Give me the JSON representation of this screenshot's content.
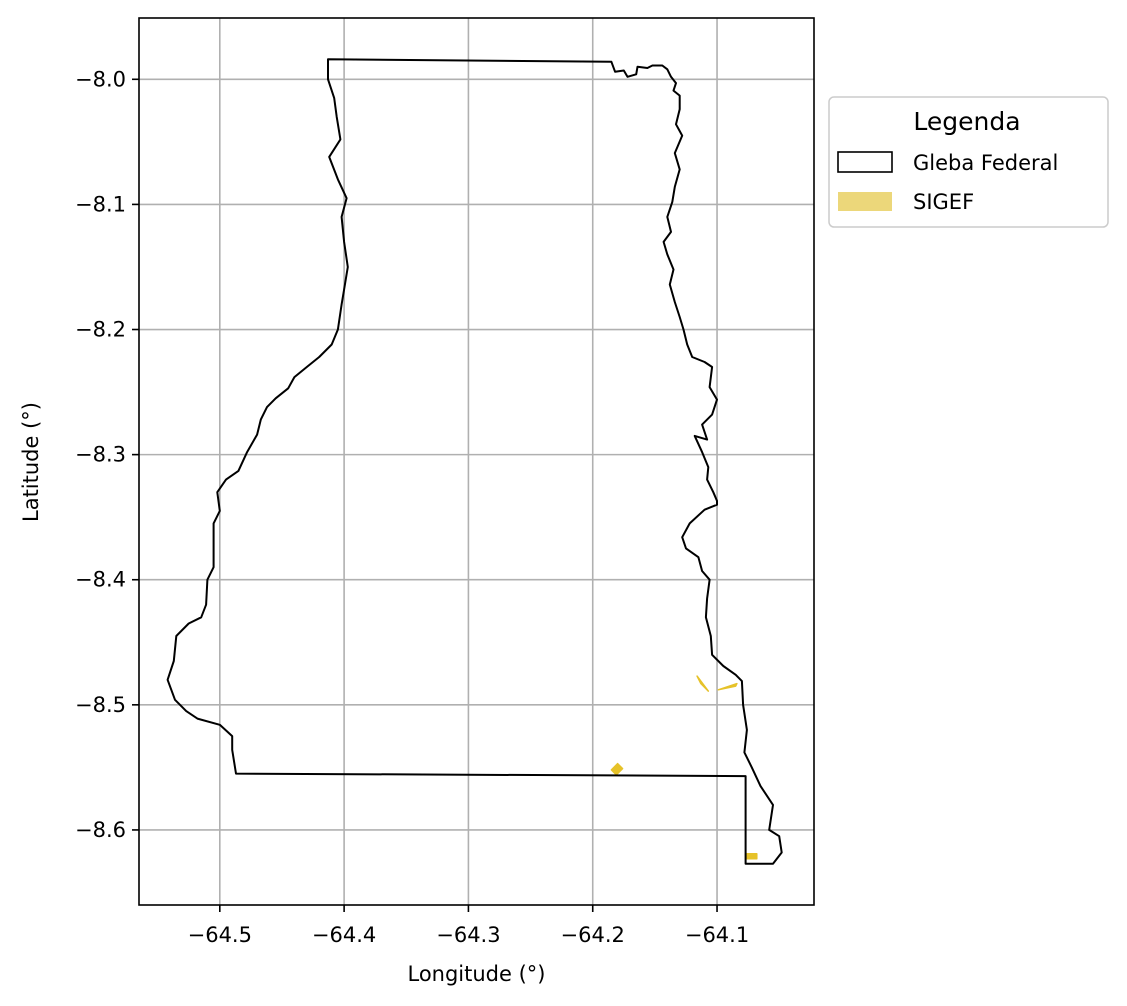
{
  "colors": {
    "boundary": "#000000",
    "sigef": "#e6c229",
    "sigef_legend": "#ecd77a",
    "grid": "#b0b0b0",
    "legend_border": "#cccccc"
  },
  "chart_data": {
    "type": "map",
    "xlabel": "Longitude (°)",
    "ylabel": "Latitude (°)",
    "xlim": [
      -64.565,
      -64.022
    ],
    "ylim": [
      -8.66,
      -7.951
    ],
    "xticks": [
      -64.5,
      -64.4,
      -64.3,
      -64.2,
      -64.1
    ],
    "xtick_labels": [
      "−64.5",
      "−64.4",
      "−64.3",
      "−64.2",
      "−64.1"
    ],
    "yticks": [
      -8.0,
      -8.1,
      -8.2,
      -8.3,
      -8.4,
      -8.5,
      -8.6
    ],
    "ytick_labels": [
      "−8.0",
      "−8.1",
      "−8.2",
      "−8.3",
      "−8.4",
      "−8.5",
      "−8.6"
    ],
    "grid": true,
    "legend": {
      "title": "Legenda",
      "placement": "outside-upper-right",
      "entries": [
        {
          "label": "Gleba Federal",
          "style": "outline"
        },
        {
          "label": "SIGEF",
          "style": "filled"
        }
      ]
    },
    "gleba_federal": [
      [
        -64.413,
        -7.984
      ],
      [
        -64.185,
        -7.986
      ],
      [
        -64.182,
        -7.994
      ],
      [
        -64.175,
        -7.993
      ],
      [
        -64.172,
        -7.998
      ],
      [
        -64.165,
        -7.996
      ],
      [
        -64.164,
        -7.99
      ],
      [
        -64.156,
        -7.991
      ],
      [
        -64.152,
        -7.989
      ],
      [
        -64.144,
        -7.989
      ],
      [
        -64.14,
        -7.992
      ],
      [
        -64.137,
        -7.998
      ],
      [
        -64.133,
        -8.003
      ],
      [
        -64.135,
        -8.009
      ],
      [
        -64.13,
        -8.013
      ],
      [
        -64.13,
        -8.024
      ],
      [
        -64.133,
        -8.036
      ],
      [
        -64.128,
        -8.045
      ],
      [
        -64.134,
        -8.059
      ],
      [
        -64.13,
        -8.072
      ],
      [
        -64.134,
        -8.086
      ],
      [
        -64.136,
        -8.098
      ],
      [
        -64.14,
        -8.11
      ],
      [
        -64.137,
        -8.122
      ],
      [
        -64.143,
        -8.13
      ],
      [
        -64.14,
        -8.14
      ],
      [
        -64.135,
        -8.152
      ],
      [
        -64.138,
        -8.164
      ],
      [
        -64.134,
        -8.178
      ],
      [
        -64.13,
        -8.19
      ],
      [
        -64.127,
        -8.2
      ],
      [
        -64.124,
        -8.212
      ],
      [
        -64.12,
        -8.222
      ],
      [
        -64.11,
        -8.226
      ],
      [
        -64.104,
        -8.23
      ],
      [
        -64.106,
        -8.246
      ],
      [
        -64.1,
        -8.256
      ],
      [
        -64.104,
        -8.268
      ],
      [
        -64.112,
        -8.276
      ],
      [
        -64.108,
        -8.288
      ],
      [
        -64.118,
        -8.285
      ],
      [
        -64.112,
        -8.298
      ],
      [
        -64.107,
        -8.31
      ],
      [
        -64.108,
        -8.32
      ],
      [
        -64.103,
        -8.33
      ],
      [
        -64.1,
        -8.337
      ],
      [
        -64.1,
        -8.34
      ],
      [
        -64.11,
        -8.344
      ],
      [
        -64.122,
        -8.355
      ],
      [
        -64.128,
        -8.366
      ],
      [
        -64.125,
        -8.375
      ],
      [
        -64.115,
        -8.382
      ],
      [
        -64.112,
        -8.393
      ],
      [
        -64.106,
        -8.4
      ],
      [
        -64.108,
        -8.415
      ],
      [
        -64.109,
        -8.43
      ],
      [
        -64.105,
        -8.445
      ],
      [
        -64.104,
        -8.46
      ],
      [
        -64.095,
        -8.469
      ],
      [
        -64.085,
        -8.476
      ],
      [
        -64.08,
        -8.481
      ],
      [
        -64.079,
        -8.5
      ],
      [
        -64.076,
        -8.52
      ],
      [
        -64.078,
        -8.538
      ],
      [
        -64.072,
        -8.55
      ],
      [
        -64.065,
        -8.565
      ],
      [
        -64.055,
        -8.58
      ],
      [
        -64.058,
        -8.6
      ],
      [
        -64.05,
        -8.605
      ],
      [
        -64.048,
        -8.618
      ],
      [
        -64.055,
        -8.627
      ],
      [
        -64.077,
        -8.627
      ],
      [
        -64.077,
        -8.557
      ],
      [
        -64.487,
        -8.555
      ],
      [
        -64.49,
        -8.536
      ],
      [
        -64.49,
        -8.525
      ],
      [
        -64.5,
        -8.516
      ],
      [
        -64.518,
        -8.511
      ],
      [
        -64.527,
        -8.505
      ],
      [
        -64.536,
        -8.496
      ],
      [
        -64.542,
        -8.48
      ],
      [
        -64.537,
        -8.465
      ],
      [
        -64.535,
        -8.445
      ],
      [
        -64.525,
        -8.435
      ],
      [
        -64.515,
        -8.43
      ],
      [
        -64.511,
        -8.42
      ],
      [
        -64.51,
        -8.4
      ],
      [
        -64.505,
        -8.39
      ],
      [
        -64.505,
        -8.37
      ],
      [
        -64.505,
        -8.355
      ],
      [
        -64.5,
        -8.345
      ],
      [
        -64.502,
        -8.33
      ],
      [
        -64.495,
        -8.32
      ],
      [
        -64.485,
        -8.313
      ],
      [
        -64.478,
        -8.298
      ],
      [
        -64.47,
        -8.284
      ],
      [
        -64.467,
        -8.272
      ],
      [
        -64.462,
        -8.262
      ],
      [
        -64.455,
        -8.255
      ],
      [
        -64.445,
        -8.247
      ],
      [
        -64.44,
        -8.238
      ],
      [
        -64.43,
        -8.23
      ],
      [
        -64.42,
        -8.222
      ],
      [
        -64.41,
        -8.212
      ],
      [
        -64.405,
        -8.2
      ],
      [
        -64.402,
        -8.18
      ],
      [
        -64.4,
        -8.168
      ],
      [
        -64.397,
        -8.15
      ],
      [
        -64.4,
        -8.13
      ],
      [
        -64.402,
        -8.11
      ],
      [
        -64.398,
        -8.095
      ],
      [
        -64.405,
        -8.08
      ],
      [
        -64.412,
        -8.062
      ],
      [
        -64.403,
        -8.048
      ],
      [
        -64.406,
        -8.03
      ],
      [
        -64.408,
        -8.015
      ],
      [
        -64.413,
        -8.0
      ],
      [
        -64.413,
        -7.984
      ]
    ],
    "sigef": [
      [
        [
          -64.185,
          -8.552
        ],
        [
          -64.18,
          -8.547
        ],
        [
          -64.176,
          -8.551
        ],
        [
          -64.181,
          -8.556
        ]
      ],
      [
        [
          -64.116,
          -8.477
        ],
        [
          -64.107,
          -8.489
        ],
        [
          -64.113,
          -8.483
        ]
      ],
      [
        [
          -64.099,
          -8.488
        ],
        [
          -64.084,
          -8.483
        ],
        [
          -64.085,
          -8.485
        ]
      ],
      [
        [
          -64.077,
          -8.619
        ],
        [
          -64.068,
          -8.619
        ],
        [
          -64.068,
          -8.623
        ],
        [
          -64.077,
          -8.623
        ]
      ]
    ]
  }
}
